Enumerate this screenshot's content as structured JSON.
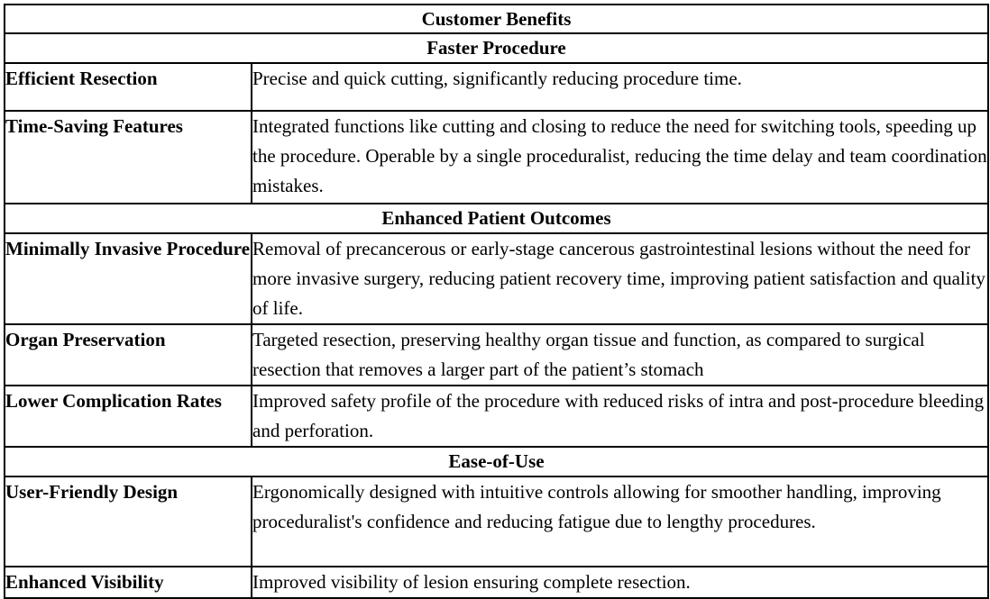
{
  "table": {
    "title": "Customer Benefits",
    "sections": [
      {
        "heading": "Faster Procedure",
        "rows": [
          {
            "label": "Efficient Resection",
            "text": "Precise and quick cutting, significantly reducing procedure time."
          },
          {
            "label": "Time-Saving Features",
            "text": "Integrated functions like cutting and closing to reduce the need for switching tools, speeding up the procedure. Operable by a single proceduralist, reducing the time delay and team coordination mistakes."
          }
        ]
      },
      {
        "heading": "Enhanced Patient Outcomes",
        "rows": [
          {
            "label": "Minimally Invasive Procedure",
            "text": "Removal of precancerous or early-stage cancerous gastrointestinal lesions without the need for more invasive surgery, reducing patient recovery time, improving patient satisfaction and quality of life."
          },
          {
            "label": "Organ Preservation",
            "text": "Targeted resection, preserving healthy organ tissue and function, as compared to surgical resection that removes a larger part of the patient’s stomach"
          },
          {
            "label": "Lower Complication Rates",
            "text": "Improved safety profile of the procedure with reduced risks of intra and post-procedure bleeding and perforation."
          }
        ]
      },
      {
        "heading": "Ease-of-Use",
        "rows": [
          {
            "label": "User-Friendly Design",
            "text": "Ergonomically designed with intuitive controls allowing for smoother handling, improving proceduralist's confidence and reducing fatigue due to lengthy procedures."
          },
          {
            "label": "Enhanced Visibility",
            "text": "Improved visibility of lesion ensuring complete resection."
          }
        ]
      }
    ]
  }
}
